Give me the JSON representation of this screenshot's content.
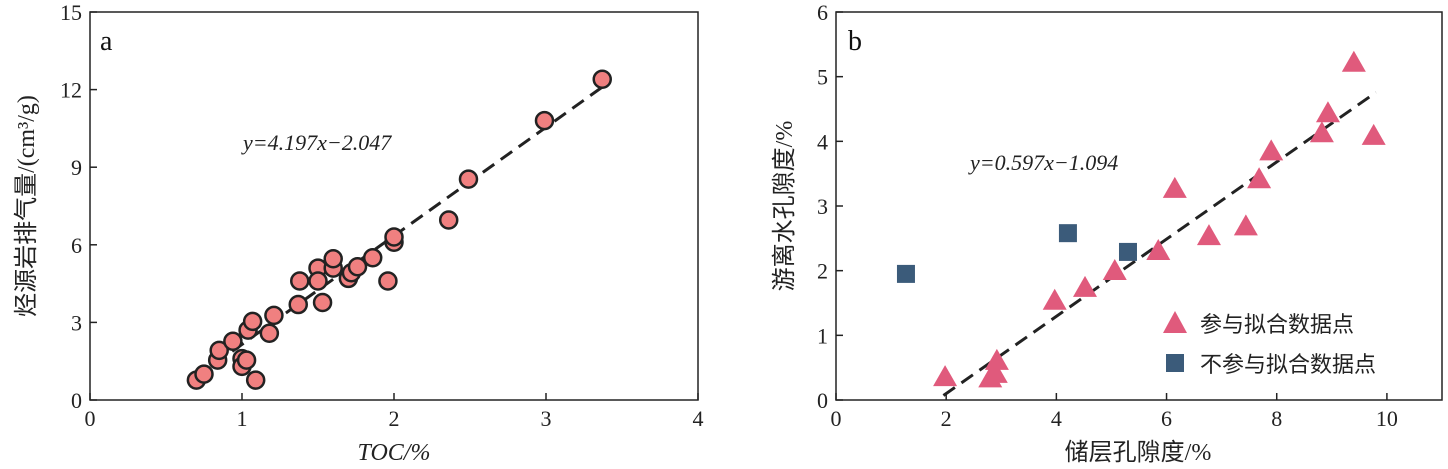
{
  "colors": {
    "circle": "#f08080",
    "triangle": "#e05a7c",
    "square": "#3b5b7a",
    "line": "#222222"
  },
  "chart_data": [
    {
      "type": "scatter",
      "panel_label": "a",
      "xlabel": "TOC/%",
      "ylabel": "烃源岩排气量/(cm³/g)",
      "xlim": [
        0,
        4
      ],
      "ylim": [
        0,
        15
      ],
      "xticks": [
        "0",
        "1",
        "2",
        "3",
        "4"
      ],
      "yticks": [
        "0",
        "3",
        "6",
        "9",
        "12",
        "15"
      ],
      "equation": "y=4.197x−2.047",
      "fit": {
        "slope": 4.197,
        "intercept": -2.047,
        "x_range": [
          0.7,
          3.4
        ]
      },
      "points": [
        [
          0.7,
          0.77
        ],
        [
          0.75,
          1.0
        ],
        [
          0.84,
          1.54
        ],
        [
          0.85,
          1.92
        ],
        [
          0.94,
          2.27
        ],
        [
          1.0,
          1.6
        ],
        [
          1.0,
          1.3
        ],
        [
          1.03,
          1.54
        ],
        [
          1.04,
          2.7
        ],
        [
          1.07,
          3.04
        ],
        [
          1.09,
          0.77
        ],
        [
          1.18,
          2.58
        ],
        [
          1.21,
          3.27
        ],
        [
          1.37,
          3.69
        ],
        [
          1.38,
          4.6
        ],
        [
          1.5,
          5.1
        ],
        [
          1.5,
          4.6
        ],
        [
          1.53,
          3.77
        ],
        [
          1.6,
          5.1
        ],
        [
          1.6,
          5.46
        ],
        [
          1.7,
          4.7
        ],
        [
          1.72,
          4.92
        ],
        [
          1.76,
          5.15
        ],
        [
          1.86,
          5.5
        ],
        [
          1.96,
          4.6
        ],
        [
          2.0,
          6.1
        ],
        [
          2.0,
          6.3
        ],
        [
          2.36,
          6.96
        ],
        [
          2.49,
          8.54
        ],
        [
          2.99,
          10.8
        ],
        [
          3.37,
          12.4
        ]
      ]
    },
    {
      "type": "scatter",
      "panel_label": "b",
      "xlabel": "储层孔隙度/%",
      "ylabel": "游离水孔隙度/%",
      "xlim": [
        0,
        11
      ],
      "ylim": [
        0,
        6
      ],
      "xticks": [
        "0",
        "2",
        "4",
        "6",
        "8",
        "10"
      ],
      "yticks": [
        "0",
        "1",
        "2",
        "3",
        "4",
        "5",
        "6"
      ],
      "equation": "y=0.597x−1.094",
      "fit": {
        "slope": 0.597,
        "intercept": -1.094,
        "x_range": [
          1.95,
          9.8
        ]
      },
      "legend_position": "bottom-right",
      "series": [
        {
          "name": "参与拟合数据点",
          "marker": "triangle",
          "points": [
            [
              1.98,
              0.37
            ],
            [
              2.8,
              0.35
            ],
            [
              2.9,
              0.42
            ],
            [
              2.92,
              0.62
            ],
            [
              3.97,
              1.55
            ],
            [
              4.52,
              1.75
            ],
            [
              5.06,
              2.01
            ],
            [
              5.85,
              2.32
            ],
            [
              6.15,
              3.28
            ],
            [
              6.77,
              2.55
            ],
            [
              7.44,
              2.7
            ],
            [
              7.68,
              3.43
            ],
            [
              7.9,
              3.86
            ],
            [
              8.82,
              4.14
            ],
            [
              8.93,
              4.45
            ],
            [
              9.4,
              5.23
            ],
            [
              9.76,
              4.1
            ]
          ]
        },
        {
          "name": "不参与拟合数据点",
          "marker": "square",
          "points": [
            [
              1.27,
              1.95
            ],
            [
              4.21,
              2.58
            ],
            [
              5.3,
              2.29
            ]
          ]
        }
      ]
    }
  ]
}
